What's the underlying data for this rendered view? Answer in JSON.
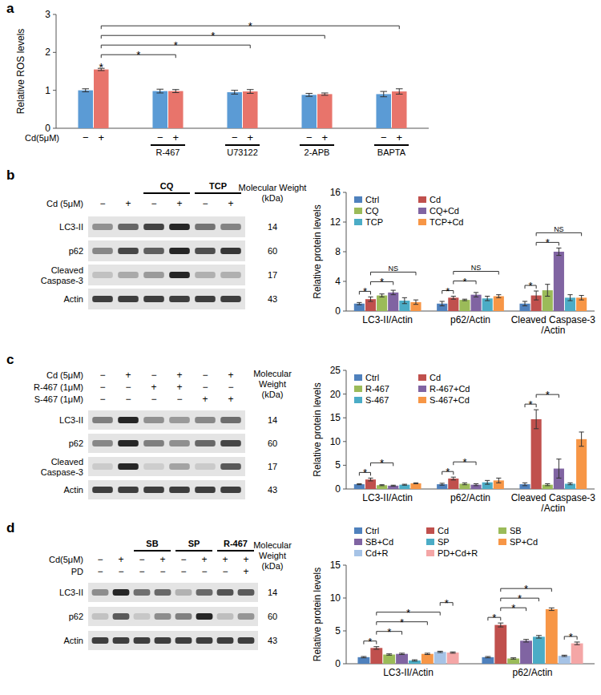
{
  "chart_data": [
    {
      "type": "bar",
      "title": "a",
      "y_label": "Relative ROS levels",
      "x_label": "Cd(5μM)",
      "categories": [
        null,
        "R-467",
        "U73122",
        "2-APB",
        "BAPTA"
      ],
      "series": [
        {
          "name": "−",
          "color": "#5B9BD5",
          "values": [
            1.0,
            0.98,
            0.95,
            0.88,
            0.9
          ],
          "errors": [
            0.04,
            0.05,
            0.05,
            0.04,
            0.07
          ]
        },
        {
          "name": "+",
          "color": "#E8746B",
          "values": [
            1.55,
            0.98,
            0.97,
            0.9,
            0.97
          ],
          "errors": [
            0.03,
            0.04,
            0.05,
            0.03,
            0.07
          ]
        }
      ],
      "ylim": [
        0,
        3
      ],
      "yticks": [
        0,
        1,
        2,
        3
      ],
      "annotations": [
        {
          "text": "*",
          "bar": [
            0,
            1
          ]
        }
      ],
      "brackets": [
        {
          "text": "*",
          "from": [
            0,
            1
          ],
          "to": [
            1,
            1
          ]
        },
        {
          "text": "*",
          "from": [
            0,
            1
          ],
          "to": [
            2,
            1
          ]
        },
        {
          "text": "*",
          "from": [
            0,
            1
          ],
          "to": [
            3,
            1
          ]
        },
        {
          "text": "*",
          "from": [
            0,
            1
          ],
          "to": [
            4,
            1
          ]
        }
      ]
    },
    {
      "type": "bar",
      "title": "b",
      "y_label": "Relative protein levels",
      "legend": "upper left",
      "categories": [
        "LC3-II/Actin",
        "p62/Actin",
        "Cleaved Caspase-3\n/Actin"
      ],
      "series": [
        {
          "name": "Ctrl",
          "color": "#4F81BD",
          "values": [
            1.0,
            1.0,
            1.0
          ],
          "errors": [
            0.15,
            0.3,
            0.3
          ]
        },
        {
          "name": "Cd",
          "color": "#C0504D",
          "values": [
            1.6,
            1.8,
            2.1
          ],
          "errors": [
            0.3,
            0.2,
            0.6
          ]
        },
        {
          "name": "CQ",
          "color": "#9BBB59",
          "values": [
            2.1,
            1.5,
            2.8
          ],
          "errors": [
            0.2,
            0.1,
            0.8
          ]
        },
        {
          "name": "CQ+Cd",
          "color": "#8064A2",
          "values": [
            2.5,
            2.2,
            8.0
          ],
          "errors": [
            0.3,
            0.3,
            0.5
          ]
        },
        {
          "name": "TCP",
          "color": "#4BACC6",
          "values": [
            1.4,
            1.7,
            1.8
          ],
          "errors": [
            0.4,
            0.3,
            0.4
          ]
        },
        {
          "name": "TCP+Cd",
          "color": "#F79646",
          "values": [
            1.2,
            2.0,
            1.8
          ],
          "errors": [
            0.3,
            0.2,
            0.3
          ]
        }
      ],
      "ylim": [
        0,
        16
      ],
      "yticks": [
        0,
        4,
        8,
        12,
        16
      ],
      "brackets": [
        {
          "text": "*",
          "from": [
            0,
            0
          ],
          "to": [
            0,
            1
          ]
        },
        {
          "text": "*",
          "from": [
            0,
            1
          ],
          "to": [
            0,
            3
          ]
        },
        {
          "text": "NS",
          "from": [
            0,
            1
          ],
          "to": [
            0,
            5
          ]
        },
        {
          "text": "*",
          "from": [
            1,
            0
          ],
          "to": [
            1,
            1
          ]
        },
        {
          "text": "*",
          "from": [
            1,
            1
          ],
          "to": [
            1,
            3
          ]
        },
        {
          "text": "NS",
          "from": [
            1,
            1
          ],
          "to": [
            1,
            5
          ]
        },
        {
          "text": "*",
          "from": [
            2,
            0
          ],
          "to": [
            2,
            1
          ]
        },
        {
          "text": "*",
          "from": [
            2,
            1
          ],
          "to": [
            2,
            3
          ]
        },
        {
          "text": "NS",
          "from": [
            2,
            1
          ],
          "to": [
            2,
            5
          ]
        }
      ]
    },
    {
      "type": "bar",
      "title": "c",
      "y_label": "Relative protein levels",
      "legend": "upper left",
      "categories": [
        "LC3-II/Actin",
        "p62/Actin",
        "Cleaved Caspase-3\n/Actin"
      ],
      "series": [
        {
          "name": "Ctrl",
          "color": "#4F81BD",
          "values": [
            1.0,
            1.0,
            1.0
          ],
          "errors": [
            0.1,
            0.2,
            0.3
          ]
        },
        {
          "name": "Cd",
          "color": "#C0504D",
          "values": [
            2.0,
            2.2,
            14.7
          ],
          "errors": [
            0.3,
            0.3,
            2.0
          ]
        },
        {
          "name": "R-467",
          "color": "#9BBB59",
          "values": [
            0.8,
            1.1,
            0.9
          ],
          "errors": [
            0.1,
            0.2,
            0.2
          ]
        },
        {
          "name": "R-467+Cd",
          "color": "#8064A2",
          "values": [
            0.7,
            0.9,
            4.3
          ],
          "errors": [
            0.1,
            0.2,
            2.0
          ]
        },
        {
          "name": "S-467",
          "color": "#4BACC6",
          "values": [
            0.9,
            1.4,
            1.1
          ],
          "errors": [
            0.1,
            0.4,
            0.2
          ]
        },
        {
          "name": "S-467+Cd",
          "color": "#F79646",
          "values": [
            1.2,
            1.8,
            10.5
          ],
          "errors": [
            0.1,
            0.5,
            1.5
          ]
        }
      ],
      "ylim": [
        0,
        25
      ],
      "yticks": [
        0,
        5,
        10,
        15,
        20,
        25
      ],
      "brackets": [
        {
          "text": "*",
          "from": [
            0,
            0
          ],
          "to": [
            0,
            1
          ]
        },
        {
          "text": "*",
          "from": [
            0,
            1
          ],
          "to": [
            0,
            3
          ]
        },
        {
          "text": "*",
          "from": [
            1,
            0
          ],
          "to": [
            1,
            1
          ]
        },
        {
          "text": "*",
          "from": [
            1,
            1
          ],
          "to": [
            1,
            3
          ]
        },
        {
          "text": "*",
          "from": [
            2,
            0
          ],
          "to": [
            2,
            1
          ]
        },
        {
          "text": "*",
          "from": [
            2,
            1
          ],
          "to": [
            2,
            3
          ]
        }
      ]
    },
    {
      "type": "bar",
      "title": "d",
      "y_label": "Relative protein levels",
      "legend": "top",
      "categories": [
        "LC3-II/Actin",
        "p62/Actin"
      ],
      "series": [
        {
          "name": "Ctrl",
          "color": "#4F81BD",
          "values": [
            1.0,
            1.0
          ],
          "errors": [
            0.1,
            0.1
          ]
        },
        {
          "name": "Cd",
          "color": "#C0504D",
          "values": [
            2.4,
            5.9
          ],
          "errors": [
            0.2,
            0.3
          ]
        },
        {
          "name": "SB",
          "color": "#9BBB59",
          "values": [
            1.4,
            0.8
          ],
          "errors": [
            0.1,
            0.1
          ]
        },
        {
          "name": "SB+Cd",
          "color": "#8064A2",
          "values": [
            1.5,
            3.5
          ],
          "errors": [
            0.1,
            0.2
          ]
        },
        {
          "name": "SP",
          "color": "#4BACC6",
          "values": [
            0.5,
            4.1
          ],
          "errors": [
            0.1,
            0.2
          ]
        },
        {
          "name": "SP+Cd",
          "color": "#F79646",
          "values": [
            1.5,
            8.3
          ],
          "errors": [
            0.1,
            0.2
          ]
        },
        {
          "name": "Cd+R",
          "color": "#A6C3E6",
          "values": [
            1.8,
            1.2
          ],
          "errors": [
            0.1,
            0.1
          ]
        },
        {
          "name": "PD+Cd+R",
          "color": "#F4A6A6",
          "values": [
            1.7,
            3.1
          ],
          "errors": [
            0.1,
            0.2
          ]
        }
      ],
      "ylim": [
        0,
        15
      ],
      "yticks": [
        0,
        5,
        10,
        15
      ],
      "brackets": [
        {
          "text": "*",
          "from": [
            0,
            0
          ],
          "to": [
            0,
            1
          ]
        },
        {
          "text": "*",
          "from": [
            0,
            1
          ],
          "to": [
            0,
            3
          ]
        },
        {
          "text": "*",
          "from": [
            0,
            1
          ],
          "to": [
            0,
            5
          ]
        },
        {
          "text": "*",
          "from": [
            0,
            1
          ],
          "to": [
            0,
            6
          ]
        },
        {
          "text": "*",
          "from": [
            0,
            6
          ],
          "to": [
            0,
            7
          ]
        },
        {
          "text": "*",
          "from": [
            1,
            0
          ],
          "to": [
            1,
            1
          ]
        },
        {
          "text": "*",
          "from": [
            1,
            1
          ],
          "to": [
            1,
            3
          ]
        },
        {
          "text": "*",
          "from": [
            1,
            1
          ],
          "to": [
            1,
            4
          ]
        },
        {
          "text": "*",
          "from": [
            1,
            1
          ],
          "to": [
            1,
            5
          ]
        },
        {
          "text": "*",
          "from": [
            1,
            6
          ],
          "to": [
            1,
            7
          ]
        }
      ]
    }
  ],
  "blots": [
    {
      "groups": [
        {
          "label": "CQ",
          "lanes": [
            2,
            3
          ]
        },
        {
          "label": "TCP",
          "lanes": [
            4,
            5
          ]
        }
      ],
      "conditions": [
        {
          "label": "Cd (5μM)",
          "signs": [
            "−",
            "+",
            "−",
            "+",
            "−",
            "+"
          ]
        }
      ],
      "mw_header": "Molecular Weight\n(kDa)",
      "rows": [
        {
          "label": "LC3-II",
          "mw": 14
        },
        {
          "label": "p62",
          "mw": 60
        },
        {
          "label": "Cleaved\nCaspase-3",
          "mw": 17
        },
        {
          "label": "Actin",
          "mw": 43
        }
      ]
    },
    {
      "groups": [],
      "conditions": [
        {
          "label": "Cd (5μM)",
          "signs": [
            "−",
            "+",
            "−",
            "+",
            "−",
            "+"
          ]
        },
        {
          "label": "R-467 (1μM)",
          "signs": [
            "−",
            "−",
            "+",
            "+",
            "−",
            "−"
          ]
        },
        {
          "label": "S-467 (1μM)",
          "signs": [
            "−",
            "−",
            "−",
            "−",
            "+",
            "+"
          ]
        }
      ],
      "mw_header": "Molecular\nWeight\n(kDa)",
      "rows": [
        {
          "label": "LC3-II",
          "mw": 14
        },
        {
          "label": "p62",
          "mw": 60
        },
        {
          "label": "Cleaved\nCaspase-3",
          "mw": 17
        },
        {
          "label": "Actin",
          "mw": 43
        }
      ]
    },
    {
      "groups": [
        {
          "label": "SB",
          "lanes": [
            2,
            3
          ]
        },
        {
          "label": "SP",
          "lanes": [
            4,
            5
          ]
        },
        {
          "label": "R-467",
          "lanes": [
            6,
            7
          ]
        }
      ],
      "conditions": [
        {
          "label": "Cd(5μM)",
          "signs": [
            "−",
            "+",
            "−",
            "+",
            "−",
            "+",
            "+",
            "+"
          ]
        },
        {
          "label": "PD",
          "signs": [
            "−",
            "−",
            "−",
            "−",
            "−",
            "−",
            "−",
            "+"
          ]
        }
      ],
      "mw_header": "Molecular\nWeight\n(kDa)",
      "rows": [
        {
          "label": "LC3-II",
          "mw": 14
        },
        {
          "label": "p62",
          "mw": 60
        },
        {
          "label": "Actin",
          "mw": 43
        }
      ]
    }
  ]
}
